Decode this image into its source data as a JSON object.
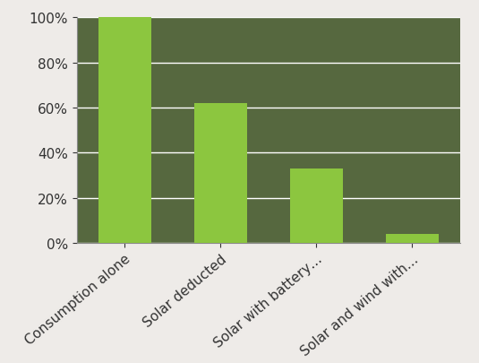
{
  "chart_data": {
    "type": "bar",
    "categories": [
      "Consumption alone",
      "Solar deducted",
      "Solar with battery…",
      "Solar and wind with…"
    ],
    "values": [
      100,
      62,
      33,
      4
    ],
    "color": "#8cc63f",
    "ylim": [
      0,
      100
    ],
    "yticks": [
      {
        "value": 0,
        "label": "0%"
      },
      {
        "value": 20,
        "label": "20%"
      },
      {
        "value": 40,
        "label": "40%"
      },
      {
        "value": 60,
        "label": "60%"
      },
      {
        "value": 80,
        "label": "80%"
      },
      {
        "value": 100,
        "label": "100%"
      }
    ],
    "grid": true
  }
}
